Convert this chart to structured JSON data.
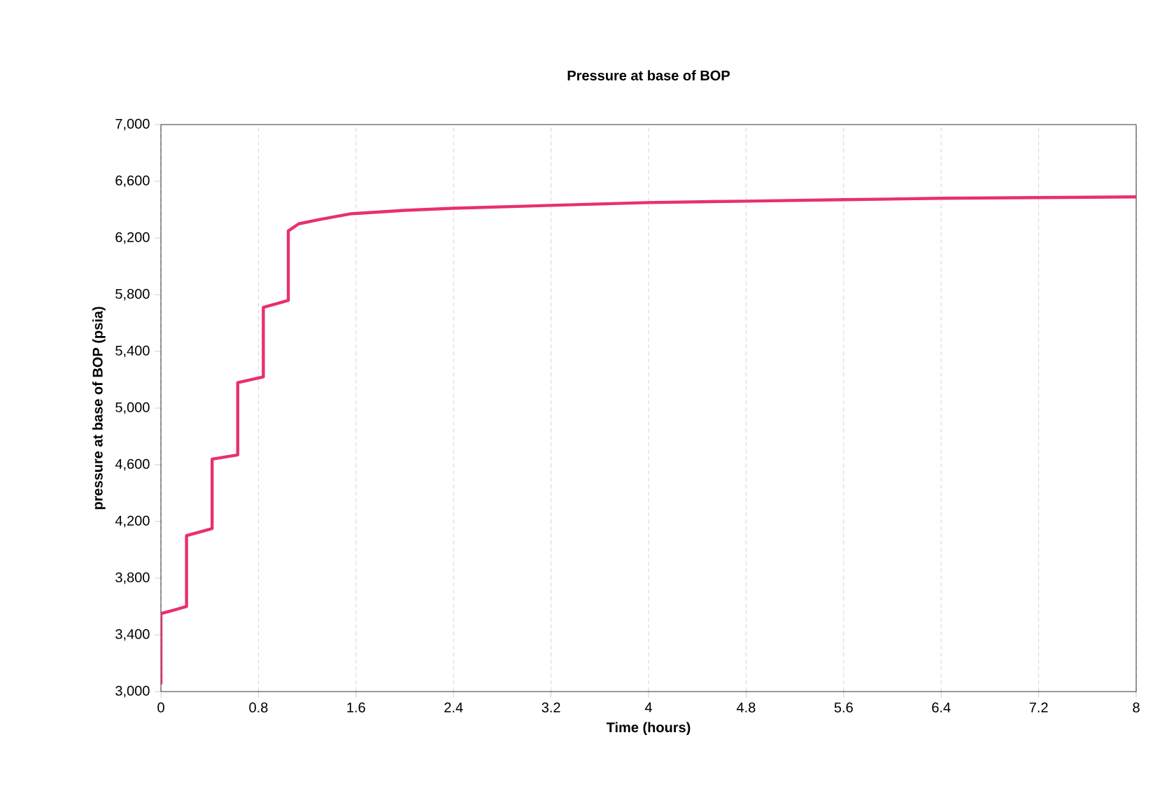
{
  "chart_data": {
    "type": "line",
    "title": "Pressure at base of BOP",
    "xlabel": "Time (hours)",
    "ylabel": "pressure at base of BOP (psia)",
    "series": [
      {
        "color": "#e8306e",
        "x": [
          0,
          0,
          0.21,
          0.21,
          0.42,
          0.42,
          0.63,
          0.63,
          0.84,
          0.84,
          1.045,
          1.045,
          1.13,
          1.3,
          1.55,
          2.0,
          2.4,
          3.2,
          4.0,
          4.8,
          5.6,
          6.4,
          7.2,
          8.0
        ],
        "values": [
          3050,
          3550,
          3600,
          4100,
          4150,
          4640,
          4670,
          5180,
          5220,
          5710,
          5760,
          6250,
          6300,
          6330,
          6370,
          6395,
          6410,
          6430,
          6450,
          6460,
          6470,
          6480,
          6485,
          6490
        ]
      }
    ],
    "xlim": [
      0,
      8
    ],
    "xticks": [
      0,
      0.8,
      1.6,
      2.4,
      3.2,
      4,
      4.8,
      5.6,
      6.4,
      7.2,
      8
    ],
    "ylim": [
      3000,
      7000
    ],
    "yticks": [
      {
        "value": 3000,
        "label": "3,000"
      },
      {
        "value": 3400,
        "label": "3,400"
      },
      {
        "value": 3800,
        "label": "3,800"
      },
      {
        "value": 4200,
        "label": "4,200"
      },
      {
        "value": 4600,
        "label": "4,600"
      },
      {
        "value": 5000,
        "label": "5,000"
      },
      {
        "value": 5400,
        "label": "5,400"
      },
      {
        "value": 5800,
        "label": "5,800"
      },
      {
        "value": 6200,
        "label": "6,200"
      },
      {
        "value": 6600,
        "label": "6,600"
      },
      {
        "value": 7000,
        "label": "7,000"
      }
    ],
    "grid": "x",
    "line_style": "solid",
    "marker": "none"
  }
}
